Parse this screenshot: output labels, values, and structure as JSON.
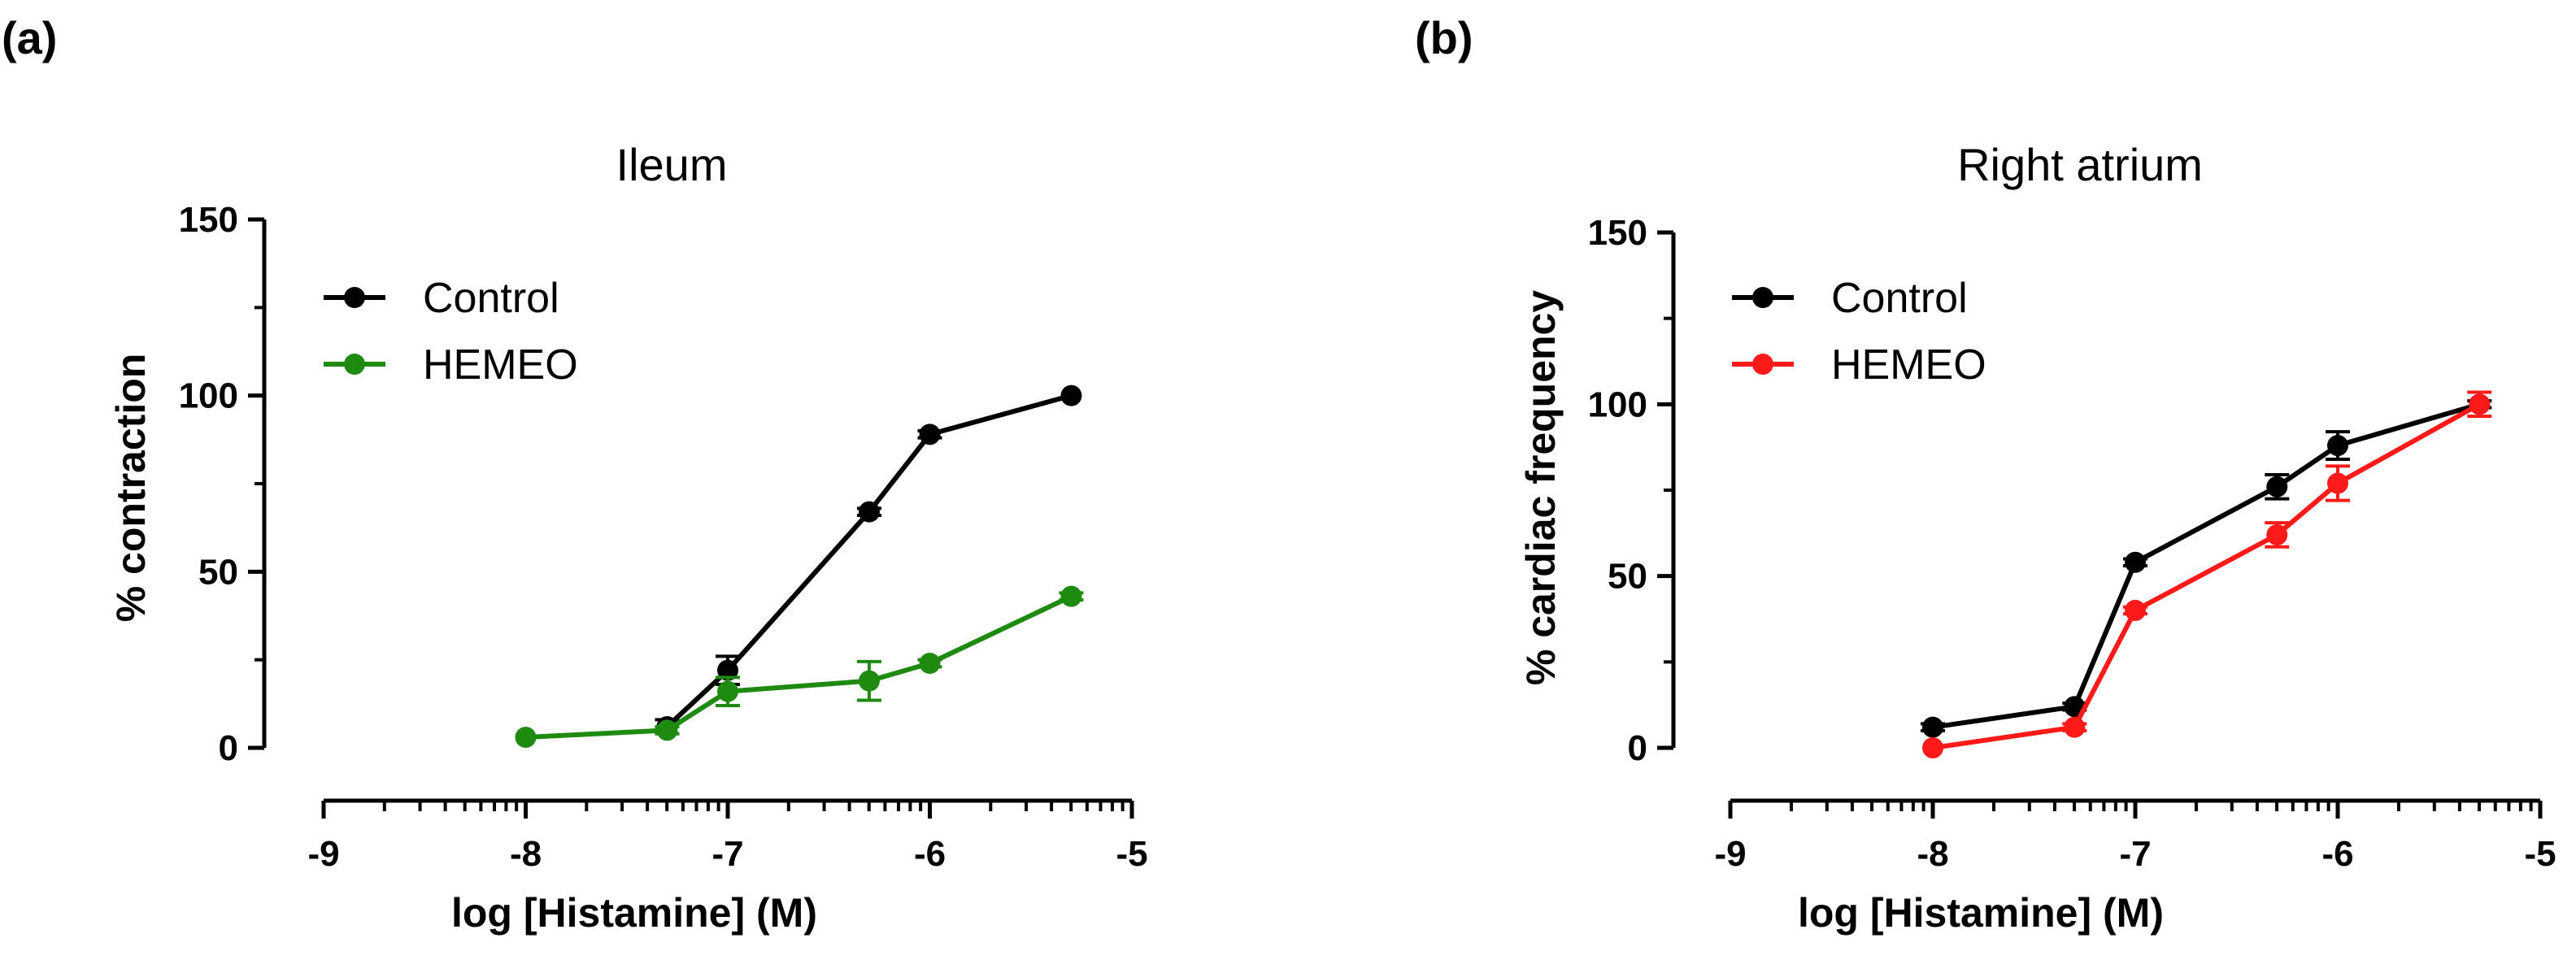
{
  "panels": [
    {
      "panel_label": "(a)",
      "chart_data": {
        "type": "line",
        "title": "Ileum",
        "xlabel": "log [Histamine] (M)",
        "ylabel": "% contraction",
        "xlim": [
          -9,
          -5
        ],
        "ylim": [
          0,
          150
        ],
        "xticks": [
          -9,
          -8,
          -7,
          -6,
          -5
        ],
        "xtick_labels": [
          "-9",
          "-8",
          "-7",
          "-6",
          "-5"
        ],
        "yticks": [
          0,
          50,
          100,
          150
        ],
        "ytick_labels": [
          "0",
          "50",
          "100",
          "150"
        ],
        "x_scale_note": "log-decade minor ticks",
        "grid": false,
        "legend_position": "top-left",
        "series": [
          {
            "name": "Control",
            "color": "#000000",
            "points": [
              {
                "x": -7.3,
                "y": 6,
                "err": 2
              },
              {
                "x": -7.0,
                "y": 22,
                "err": 4
              },
              {
                "x": -6.3,
                "y": 67,
                "err": 1
              },
              {
                "x": -6.0,
                "y": 89,
                "err": 1
              },
              {
                "x": -5.3,
                "y": 100,
                "err": 0
              }
            ]
          },
          {
            "name": "HEMEO",
            "color": "#1e8a10",
            "points": [
              {
                "x": -8.0,
                "y": 3,
                "err": 0
              },
              {
                "x": -7.3,
                "y": 5,
                "err": 1
              },
              {
                "x": -7.0,
                "y": 16,
                "err": 4
              },
              {
                "x": -6.3,
                "y": 19,
                "err": 5.5
              },
              {
                "x": -6.0,
                "y": 24,
                "err": 1
              },
              {
                "x": -5.3,
                "y": 43,
                "err": 1
              }
            ]
          }
        ]
      }
    },
    {
      "panel_label": "(b)",
      "chart_data": {
        "type": "line",
        "title": "Right atrium",
        "xlabel": "log [Histamine] (M)",
        "ylabel": "% cardiac frequency",
        "xlim": [
          -9,
          -5
        ],
        "ylim": [
          0,
          150
        ],
        "xticks": [
          -9,
          -8,
          -7,
          -6,
          -5
        ],
        "xtick_labels": [
          "-9",
          "-8",
          "-7",
          "-6",
          "-5"
        ],
        "yticks": [
          0,
          50,
          100,
          150
        ],
        "ytick_labels": [
          "0",
          "50",
          "100",
          "150"
        ],
        "x_scale_note": "log-decade minor ticks",
        "grid": false,
        "legend_position": "top-left",
        "series": [
          {
            "name": "Control",
            "color": "#000000",
            "points": [
              {
                "x": -8.0,
                "y": 6,
                "err": 1
              },
              {
                "x": -7.3,
                "y": 12,
                "err": 1
              },
              {
                "x": -7.0,
                "y": 54,
                "err": 1
              },
              {
                "x": -6.3,
                "y": 76,
                "err": 3.5
              },
              {
                "x": -6.0,
                "y": 88,
                "err": 4
              },
              {
                "x": -5.3,
                "y": 100,
                "err": 1
              }
            ]
          },
          {
            "name": "HEMEO",
            "color": "#ff1a1a",
            "points": [
              {
                "x": -8.0,
                "y": 0,
                "err": 0
              },
              {
                "x": -7.3,
                "y": 6,
                "err": 1
              },
              {
                "x": -7.0,
                "y": 40,
                "err": 1
              },
              {
                "x": -6.3,
                "y": 62,
                "err": 3.5
              },
              {
                "x": -6.0,
                "y": 77,
                "err": 5
              },
              {
                "x": -5.3,
                "y": 100,
                "err": 3.5
              }
            ]
          }
        ]
      }
    }
  ]
}
